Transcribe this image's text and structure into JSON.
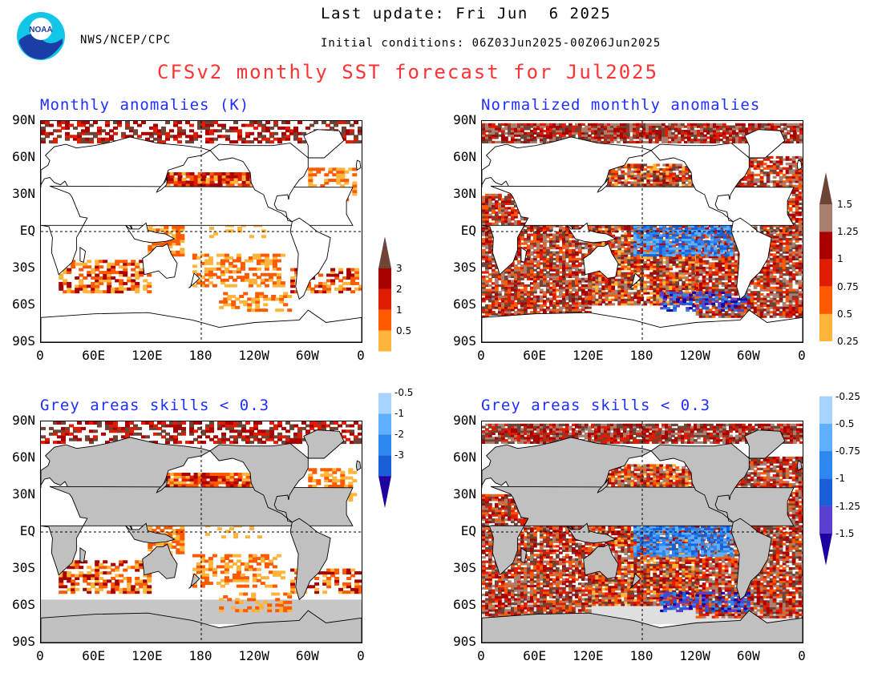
{
  "header": {
    "agency": "NWS/NCEP/CPC",
    "logo_text": "NOAA",
    "last_update": "Last update: Fri Jun  6 2025",
    "initial_conditions": "Initial conditions: 06Z03Jun2025-00Z06Jun2025",
    "title": "CFSv2 monthly SST forecast for Jul2025"
  },
  "axis": {
    "lat_labels": [
      "90N",
      "60N",
      "30N",
      "EQ",
      "30S",
      "60S",
      "90S"
    ],
    "lon_labels": [
      "0",
      "60E",
      "120E",
      "180",
      "120W",
      "60W",
      "0"
    ]
  },
  "panels": [
    {
      "id": "top-left",
      "title": "Monthly anomalies (K)",
      "grey_land": false,
      "scheme": "raw"
    },
    {
      "id": "top-right",
      "title": "Normalized monthly anomalies",
      "grey_land": false,
      "scheme": "normalized"
    },
    {
      "id": "bottom-left",
      "title": "Grey areas skills < 0.3",
      "grey_land": true,
      "scheme": "raw"
    },
    {
      "id": "bottom-right",
      "title": "Grey areas skills < 0.3",
      "grey_land": true,
      "scheme": "normalized"
    }
  ],
  "colorbars": {
    "raw": {
      "warm_labels": [
        "3",
        "2",
        "1",
        "0.5"
      ],
      "cool_labels": [
        "-0.5",
        "-1",
        "-2",
        "-3"
      ],
      "warm_colors": [
        "#6e4437",
        "#a90000",
        "#e01d00",
        "#ff5a00",
        "#ffb43c"
      ],
      "cool_colors": [
        "#a6d4ff",
        "#5eb0ff",
        "#2e86f0",
        "#1b5fd6",
        "#1f00a0"
      ]
    },
    "normalized": {
      "warm_labels": [
        "1.5",
        "1.25",
        "1",
        "0.75",
        "0.5",
        "0.25"
      ],
      "cool_labels": [
        "-0.25",
        "-0.5",
        "-0.75",
        "-1",
        "-1.25",
        "-1.5"
      ],
      "warm_colors": [
        "#6e4437",
        "#a9806f",
        "#a90000",
        "#e01d00",
        "#ff5a00",
        "#ffb43c"
      ],
      "cool_colors": [
        "#a6d4ff",
        "#5eb0ff",
        "#2e86f0",
        "#1b5fd6",
        "#5a3fd0",
        "#1f00a0"
      ]
    }
  },
  "colors": {
    "title_red": "#ff3333",
    "panel_title_blue": "#1f2fff",
    "land_grey": "#c0c0c0",
    "dark_brown": "#6e4437",
    "orange": "#ffb43c"
  }
}
